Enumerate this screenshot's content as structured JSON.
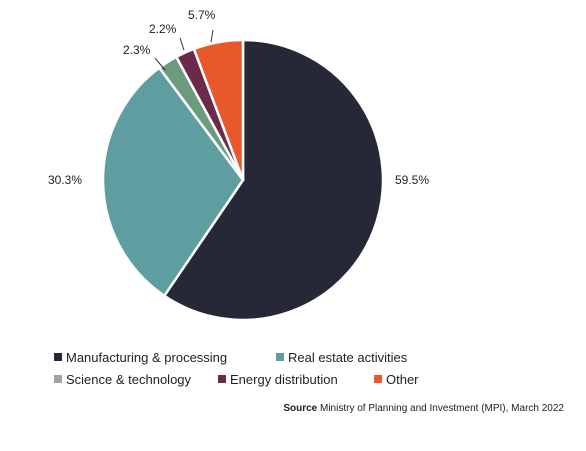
{
  "chart_data": {
    "type": "pie",
    "title": "",
    "slices": [
      {
        "name": "Manufacturing & processing",
        "value": 59.5,
        "label": "59.5%",
        "color": "#262838"
      },
      {
        "name": "Real estate activities",
        "value": 30.3,
        "label": "30.3%",
        "color": "#5f9ea0"
      },
      {
        "name": "Science & technology",
        "value": 2.3,
        "label": "2.3%",
        "color": "#6b9a7c"
      },
      {
        "name": "Energy distribution",
        "value": 2.2,
        "label": "2.2%",
        "color": "#6b2a4a"
      },
      {
        "name": "Other",
        "value": 5.7,
        "label": "5.7%",
        "color": "#e8582a"
      }
    ],
    "legend": {
      "position": "bottom",
      "items": [
        {
          "name": "Manufacturing & processing",
          "color": "#262838"
        },
        {
          "name": "Real estate activities",
          "color": "#5f9ea0"
        },
        {
          "name": "Science & technology",
          "color": "#a0a4a8"
        },
        {
          "name": "Energy distribution",
          "color": "#6b2a4a"
        },
        {
          "name": "Other",
          "color": "#e8582a"
        }
      ]
    }
  },
  "source": {
    "label": "Source",
    "text": " Ministry of Planning and Investment (MPI), March 2022"
  }
}
